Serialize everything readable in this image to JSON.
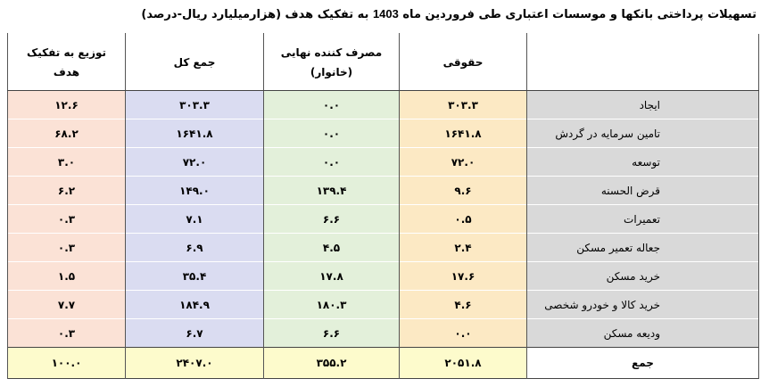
{
  "title_parts": [
    "تسهیلات پرداختی بانکها و موسسات اعتباری طی فروردین ماه ",
    "1403",
    " به تفکیک هدف (هزارمیلیارد ریال-درصد)"
  ],
  "table": {
    "header": [
      [
        ""
      ],
      [
        "حقوقی"
      ],
      [
        "مصرف کننده نهایی",
        "(خانوار)"
      ],
      [
        "جمع کل"
      ],
      [
        "توزیع به تفکیک",
        "هدف"
      ]
    ],
    "rows": [
      [
        "ایجاد",
        "۳۰۳.۳",
        "۰.۰",
        "۳۰۳.۳",
        "۱۲.۶"
      ],
      [
        "تامین سرمایه در گردش",
        "۱۶۴۱.۸",
        "۰.۰",
        "۱۶۴۱.۸",
        "۶۸.۲"
      ],
      [
        "توسعه",
        "۷۲.۰",
        "۰.۰",
        "۷۲.۰",
        "۳.۰"
      ],
      [
        "قرض الحسنه",
        "۹.۶",
        "۱۳۹.۴",
        "۱۴۹.۰",
        "۶.۲"
      ],
      [
        "تعمیرات",
        "۰.۵",
        "۶.۶",
        "۷.۱",
        "۰.۳"
      ],
      [
        "جعاله تعمیر مسکن",
        "۲.۴",
        "۴.۵",
        "۶.۹",
        "۰.۳"
      ],
      [
        "خرید مسکن",
        "۱۷.۶",
        "۱۷.۸",
        "۳۵.۴",
        "۱.۵"
      ],
      [
        "خرید کالا و خودرو شخصی",
        "۴.۶",
        "۱۸۰.۳",
        "۱۸۴.۹",
        "۷.۷"
      ],
      [
        "ودیعه مسکن",
        "۰.۰",
        "۶.۶",
        "۶.۷",
        "۰.۳"
      ]
    ],
    "total": [
      "جمع",
      "۲۰۵۱.۸",
      "۳۵۵.۲",
      "۲۴۰۷.۰",
      "۱۰۰.۰"
    ]
  }
}
